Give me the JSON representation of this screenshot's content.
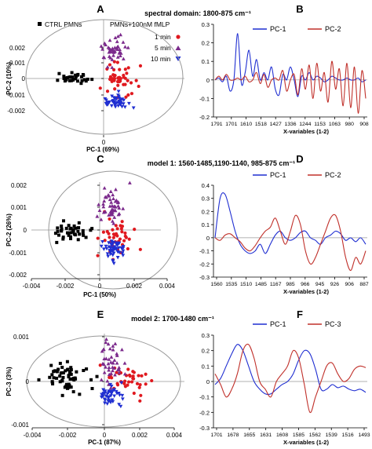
{
  "colors": {
    "ctrl": "#000000",
    "min1": "#e0191f",
    "min5": "#7b2a8c",
    "min10": "#1f2ed1",
    "pc1": "#1f2ed1",
    "pc2": "#c0302a",
    "axis": "#000000",
    "ellipse": "#999999"
  },
  "figure": {
    "row_titles": [
      "spectral domain: 1800-875 cm⁻¹",
      "model 1: 1560-1485,1190-1140, 985-875 cm⁻¹",
      "model 2: 1700-1480 cm⁻¹"
    ],
    "panel_labels": [
      "A",
      "B",
      "C",
      "D",
      "E",
      "F"
    ],
    "legend_scatter": {
      "ctrl": "CTRL PMNs",
      "treated": "PMNs+100nM fMLP",
      "t1": "1 min",
      "t5": "5 min",
      "t10": "10 min"
    }
  },
  "chart_data": [
    {
      "panel": "A",
      "type": "scatter",
      "xlabel": "PC-1 (69%)",
      "ylabel": "PC-2 (10%)",
      "xticks": [
        "0"
      ],
      "yticks": [
        "0.002",
        "0.001",
        "0",
        "-0.001",
        "-0.002"
      ],
      "series": [
        {
          "name": "CTRL PMNs",
          "group": "ctrl"
        },
        {
          "name": "1 min",
          "group": "min1"
        },
        {
          "name": "5 min",
          "group": "min5"
        },
        {
          "name": "10 min",
          "group": "min10"
        }
      ]
    },
    {
      "panel": "B",
      "type": "line",
      "xlabel": "X-variables (1-2)",
      "xticks": [
        "1791",
        "1701",
        "1610",
        "1518",
        "1427",
        "1336",
        "1244",
        "1153",
        "1063",
        "980",
        "908"
      ],
      "yticks": [
        "0.3",
        "0.2",
        "0.1",
        "0",
        "-0.1",
        "-0.2"
      ],
      "series": [
        {
          "name": "PC-1",
          "values": [
            0.0,
            0.01,
            -0.01,
            0.02,
            -0.06,
            0.0,
            0.25,
            -0.02,
            0.04,
            0.16,
            0.02,
            0.11,
            0.0,
            0.04,
            0.0,
            0.07,
            -0.05,
            -0.08,
            0.03,
            0.0,
            0.07,
            0.0,
            -0.09,
            0.02,
            0.0,
            0.04,
            0.0,
            0.02,
            0.01,
            -0.01,
            0.0,
            0.02,
            0.01,
            0.0,
            0.0,
            0.01,
            0.0,
            0.0,
            0.01,
            -0.01,
            0.0
          ]
        },
        {
          "name": "PC-2",
          "values": [
            0.0,
            0.02,
            0.0,
            0.03,
            0.0,
            0.0,
            0.01,
            0.0,
            0.02,
            -0.01,
            0.0,
            0.04,
            -0.02,
            0.03,
            -0.04,
            0.0,
            0.01,
            0.0,
            0.05,
            -0.06,
            0.0,
            0.03,
            -0.08,
            0.06,
            -0.05,
            0.08,
            -0.1,
            0.09,
            -0.06,
            0.04,
            -0.12,
            0.1,
            -0.05,
            0.06,
            -0.14,
            0.09,
            -0.15,
            0.07,
            -0.18,
            0.05,
            -0.1
          ]
        }
      ]
    },
    {
      "panel": "C",
      "type": "scatter",
      "xlabel": "PC-1 (50%)",
      "ylabel": "PC-2 (26%)",
      "xticks": [
        "-0.004",
        "-0.002",
        "0",
        "0.002",
        "0.004"
      ],
      "yticks": [
        "0.002",
        "0.001",
        "0",
        "-0.001",
        "-0.002"
      ],
      "series": [
        {
          "name": "CTRL PMNs",
          "group": "ctrl"
        },
        {
          "name": "1 min",
          "group": "min1"
        },
        {
          "name": "5 min",
          "group": "min5"
        },
        {
          "name": "10 min",
          "group": "min10"
        }
      ]
    },
    {
      "panel": "D",
      "type": "line",
      "xlabel": "X-variables (1-2)",
      "xticks": [
        "1560",
        "1535",
        "1510",
        "1485",
        "1167",
        "985",
        "966",
        "945",
        "926",
        "906",
        "887"
      ],
      "yticks": [
        "0.4",
        "0.3",
        "0.2",
        "0.1",
        "0",
        "-0.1",
        "-0.2",
        "-0.3"
      ],
      "series": [
        {
          "name": "PC-1",
          "values": [
            0.0,
            0.3,
            0.33,
            0.2,
            0.05,
            -0.05,
            -0.1,
            -0.12,
            -0.1,
            -0.05,
            -0.12,
            -0.05,
            0.02,
            0.05,
            0.0,
            -0.02,
            0.0,
            0.04,
            0.05,
            0.0,
            -0.02,
            -0.05,
            0.0,
            0.02,
            0.05,
            0.03,
            -0.02,
            0.0,
            -0.03,
            0.0,
            -0.05
          ]
        },
        {
          "name": "PC-2",
          "values": [
            0.0,
            -0.02,
            0.02,
            0.03,
            0.0,
            -0.03,
            -0.08,
            -0.1,
            -0.06,
            0.0,
            0.05,
            0.08,
            0.15,
            0.05,
            -0.05,
            0.05,
            0.17,
            0.1,
            -0.1,
            -0.2,
            -0.15,
            -0.05,
            0.05,
            0.15,
            0.17,
            0.05,
            -0.15,
            -0.25,
            -0.15,
            -0.2,
            -0.1
          ]
        }
      ]
    },
    {
      "panel": "E",
      "type": "scatter",
      "xlabel": "PC-1 (87%)",
      "ylabel": "PC-3 (3%)",
      "xticks": [
        "-0.004",
        "-0.002",
        "0",
        "0.002",
        "0.004"
      ],
      "yticks": [
        "0.001",
        "0",
        "-0.001"
      ],
      "series": [
        {
          "name": "CTRL PMNs",
          "group": "ctrl"
        },
        {
          "name": "1 min",
          "group": "min1"
        },
        {
          "name": "5 min",
          "group": "min5"
        },
        {
          "name": "10 min",
          "group": "min10"
        }
      ]
    },
    {
      "panel": "F",
      "type": "line",
      "xlabel": "X-variables (1-2)",
      "xticks": [
        "1701",
        "1678",
        "1655",
        "1631",
        "1608",
        "1585",
        "1562",
        "1539",
        "1516",
        "1493"
      ],
      "yticks": [
        "0.3",
        "0.2",
        "0.1",
        "0",
        "-0.1",
        "-0.2",
        "-0.3"
      ],
      "series": [
        {
          "name": "PC-1",
          "values": [
            -0.02,
            0.02,
            0.1,
            0.18,
            0.24,
            0.2,
            0.1,
            0.0,
            -0.05,
            -0.08,
            -0.08,
            -0.05,
            -0.02,
            0.0,
            0.05,
            0.14,
            0.2,
            0.18,
            0.08,
            -0.05,
            -0.05,
            -0.02,
            -0.04,
            -0.03,
            -0.05,
            -0.06,
            -0.05,
            -0.07
          ]
        },
        {
          "name": "PC-3",
          "values": [
            0.05,
            -0.02,
            -0.1,
            -0.05,
            0.05,
            0.2,
            0.24,
            0.15,
            0.0,
            -0.05,
            -0.1,
            0.0,
            0.05,
            0.1,
            0.2,
            0.15,
            -0.02,
            -0.2,
            -0.1,
            0.0,
            0.1,
            0.12,
            0.05,
            0.0,
            0.02,
            0.08,
            0.1,
            0.09
          ]
        }
      ]
    }
  ]
}
